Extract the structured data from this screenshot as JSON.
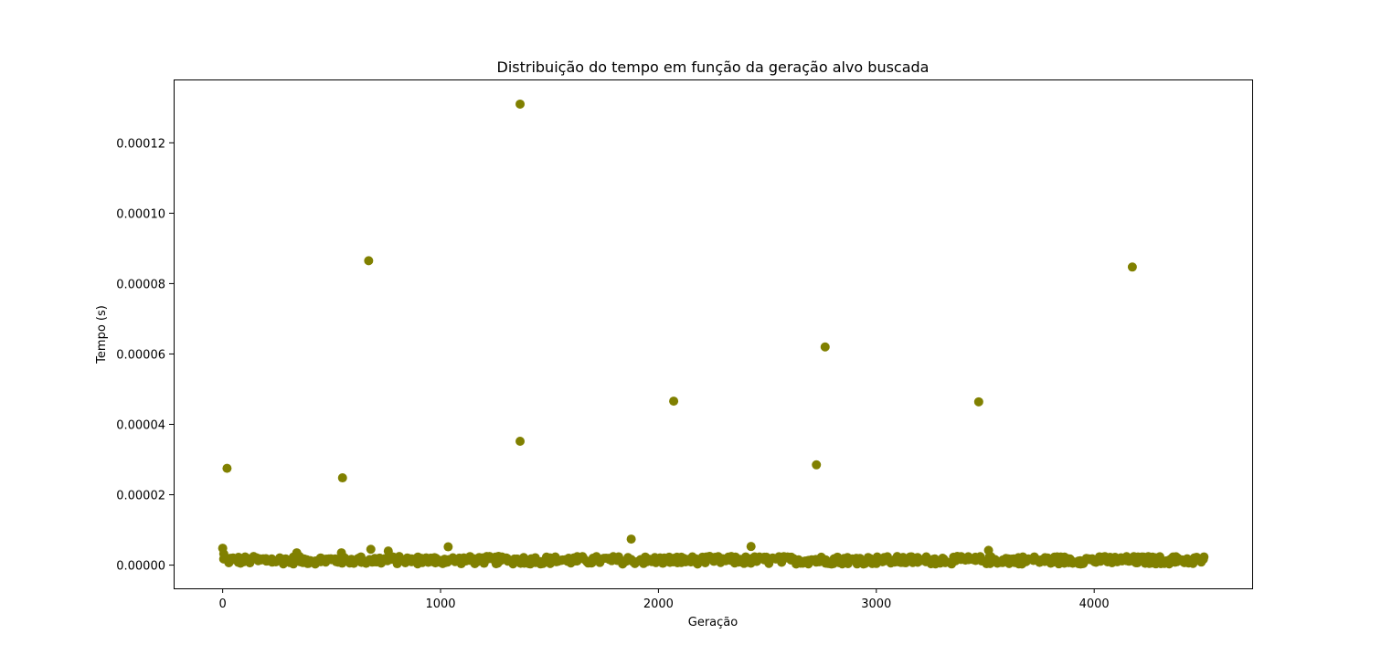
{
  "chart_data": {
    "type": "scatter",
    "title": "Distribuição do tempo em função da geração alvo buscada",
    "xlabel": "Geração",
    "ylabel": "Tempo (s)",
    "xlim": [
      -225,
      4725
    ],
    "ylim": [
      -6.6e-06,
      0.000138
    ],
    "x_ticks": [
      0,
      1000,
      2000,
      3000,
      4000
    ],
    "x_tick_labels": [
      "0",
      "1000",
      "2000",
      "3000",
      "4000"
    ],
    "y_ticks": [
      0,
      2e-05,
      4e-05,
      6e-05,
      8e-05,
      0.0001,
      0.00012
    ],
    "y_tick_labels": [
      "0.00000",
      "0.00002",
      "0.00004",
      "0.00006",
      "0.00008",
      "0.00010",
      "0.00012"
    ],
    "grid": false,
    "marker_color": "#808000",
    "outliers": [
      {
        "x": 20,
        "y": 2.75e-05
      },
      {
        "x": 550,
        "y": 2.48e-05
      },
      {
        "x": 670,
        "y": 8.65e-05
      },
      {
        "x": 1365,
        "y": 0.000131
      },
      {
        "x": 1365,
        "y": 3.52e-05
      },
      {
        "x": 2070,
        "y": 4.66e-05
      },
      {
        "x": 2725,
        "y": 2.85e-05
      },
      {
        "x": 2765,
        "y": 6.2e-05
      },
      {
        "x": 3470,
        "y": 4.64e-05
      },
      {
        "x": 4175,
        "y": 8.47e-05
      },
      {
        "x": 1875,
        "y": 7.4e-06
      },
      {
        "x": 2425,
        "y": 5.3e-06
      },
      {
        "x": 3515,
        "y": 4.2e-06
      },
      {
        "x": 1035,
        "y": 5.2e-06
      },
      {
        "x": 680,
        "y": 4.5e-06
      },
      {
        "x": 0,
        "y": 4.8e-06
      },
      {
        "x": 760,
        "y": 4e-06
      },
      {
        "x": 340,
        "y": 3.5e-06
      },
      {
        "x": 545,
        "y": 3.5e-06
      },
      {
        "x": 5,
        "y": 3.2e-06
      }
    ],
    "baseline": {
      "x_start": 0,
      "x_end": 4500,
      "x_step": 15,
      "y_min": 3e-07,
      "y_max": 2.5e-06
    }
  }
}
